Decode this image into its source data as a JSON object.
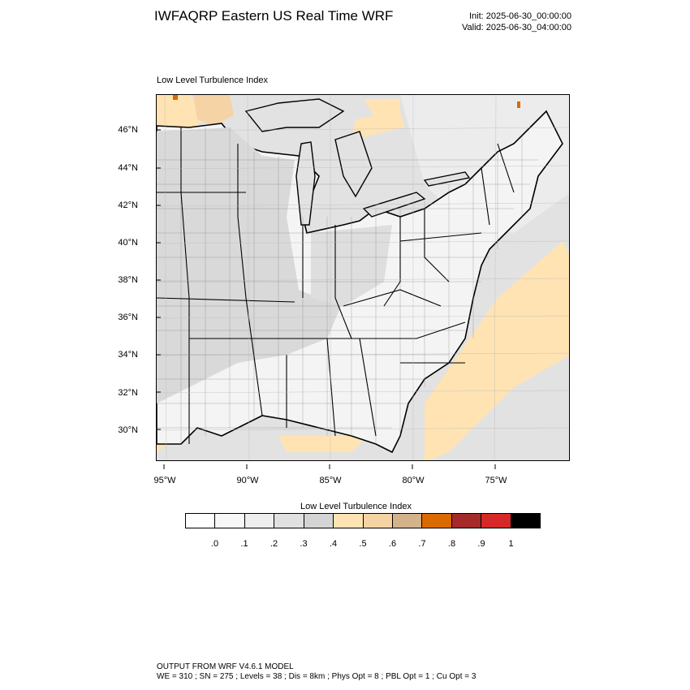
{
  "header": {
    "title": "IWFAQRP Eastern US Real Time WRF",
    "init": "Init: 2025-06-30_00:00:00",
    "valid": "Valid: 2025-06-30_04:00:00"
  },
  "plot": {
    "subtitle": "Low Level Turbulence Index",
    "lat_labels": [
      "46°N",
      "44°N",
      "42°N",
      "40°N",
      "38°N",
      "36°N",
      "34°N",
      "32°N",
      "30°N"
    ],
    "lon_labels": [
      "95°W",
      "90°W",
      "85°W",
      "80°W",
      "75°W"
    ],
    "layers": [
      "land-fill",
      "ocean-fill",
      "great-lakes",
      "state-borders",
      "county-borders",
      "coastline",
      "turbulence-shading"
    ]
  },
  "colorbar": {
    "title": "Low Level Turbulence Index",
    "colors": [
      "#ffffff",
      "#f7f7f7",
      "#eeeeee",
      "#e0e0e0",
      "#d4d4d4",
      "#ffe3b3",
      "#f5d3a5",
      "#d2b38c",
      "#d96a00",
      "#a52a2a",
      "#d62828",
      "#000000"
    ],
    "labels": [
      ".0",
      ".1",
      ".2",
      ".3",
      ".4",
      ".5",
      ".6",
      ".7",
      ".8",
      ".9",
      "1"
    ]
  },
  "footer": {
    "line1": "OUTPUT FROM WRF V4.6.1 MODEL",
    "line2": "WE = 310 ; SN = 275 ; Levels = 38 ; Dis = 8km ; Phys Opt = 8 ; PBL Opt = 1 ; Cu Opt = 3"
  }
}
